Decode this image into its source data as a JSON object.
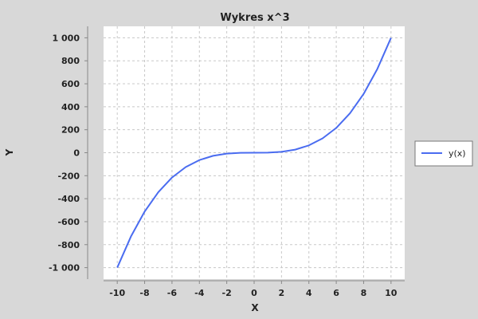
{
  "chart_data": {
    "type": "line",
    "title": "Wykres x^3",
    "xlabel": "X",
    "ylabel": "Y",
    "xlim": [
      -11,
      11
    ],
    "ylim": [
      -1100,
      1100
    ],
    "grid": true,
    "legend_position": "right",
    "x_ticks": [
      -10,
      -8,
      -6,
      -4,
      -2,
      0,
      2,
      4,
      6,
      8,
      10
    ],
    "x_tick_labels": [
      "-10",
      "-8",
      "-6",
      "-4",
      "-2",
      "0",
      "2",
      "4",
      "6",
      "8",
      "10"
    ],
    "y_ticks": [
      1000,
      800,
      600,
      400,
      200,
      0,
      -200,
      -400,
      -600,
      -800,
      -1000
    ],
    "y_tick_labels": [
      "1 000",
      "800",
      "600",
      "400",
      "200",
      "0",
      "-200",
      "-400",
      "-600",
      "-800",
      "-1 000"
    ],
    "series": [
      {
        "name": "y(x)",
        "color": "#4a6cf0",
        "x": [
          -10,
          -9,
          -8,
          -7,
          -6,
          -5,
          -4,
          -3,
          -2,
          -1,
          0,
          1,
          2,
          3,
          4,
          5,
          6,
          7,
          8,
          9,
          10
        ],
        "y": [
          -1000,
          -729,
          -512,
          -343,
          -216,
          -125,
          -64,
          -27,
          -8,
          -1,
          0,
          1,
          8,
          27,
          64,
          125,
          216,
          343,
          512,
          729,
          1000
        ]
      }
    ]
  },
  "colors": {
    "background": "#d8d8d8",
    "plot_background": "#ffffff",
    "grid": "#c8c8c8",
    "axis": "#888888"
  }
}
